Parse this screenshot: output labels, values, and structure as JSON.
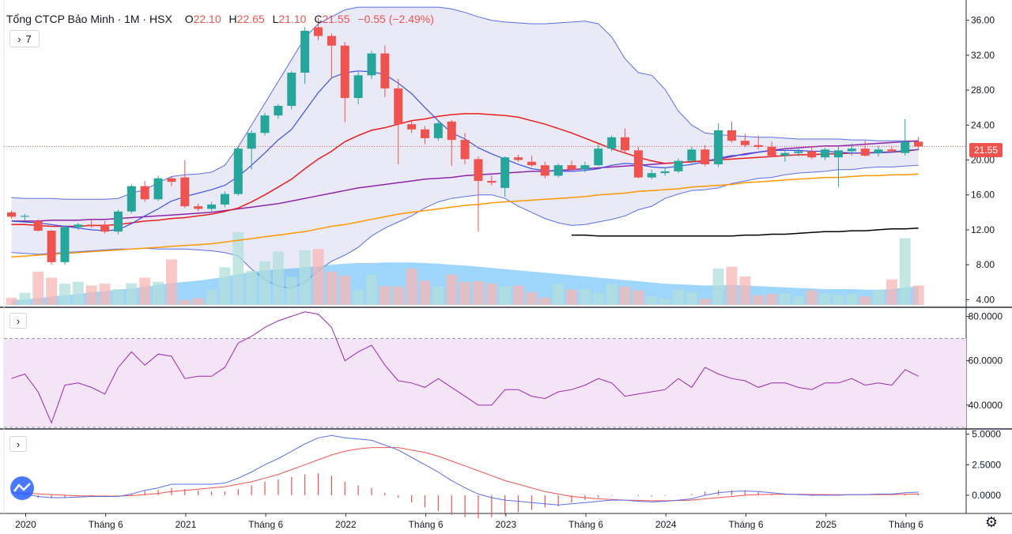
{
  "header": {
    "symbol": "Tổng CTCP Bảo Minh · 1M · HSX",
    "o_label": "O",
    "o_value": "22.10",
    "h_label": "H",
    "h_value": "22.65",
    "l_label": "L",
    "l_value": "21.10",
    "c_label": "C",
    "c_value": "21.55",
    "change": "−0.55 (−2.49%)"
  },
  "controls": {
    "collapse_main": "7",
    "collapse_rsi": "",
    "collapse_macd": ""
  },
  "price_label": "21.55",
  "colors": {
    "up": "#26a69a",
    "down": "#ef5350",
    "vol_up": "#b2dfdb",
    "vol_down": "#f7b7b5",
    "bb_fill": "#e1e3f3",
    "bb_line": "#5b6ee8",
    "ma_red": "#e91e1e",
    "ma_purple": "#8e24aa",
    "ma_orange": "#ff9800",
    "ma_blue": "#3f51e6",
    "black": "#000000",
    "rsi_band": "#f3e5f5",
    "rsi_line": "#9c27b0"
  },
  "chart_data": {
    "type": "candlestick",
    "price_axis": {
      "ticks": [
        "36.00",
        "32.00",
        "28.00",
        "24.00",
        "20.00",
        "16.00",
        "12.00",
        "8.00",
        "4.00"
      ],
      "ylim": [
        3.4,
        37.6
      ]
    },
    "rsi_axis": {
      "ticks": [
        "80.0000",
        "60.0000",
        "40.0000"
      ],
      "ylim": [
        30,
        83
      ],
      "band": [
        30,
        70
      ]
    },
    "macd_axis": {
      "ticks": [
        "5.0000",
        "2.5000",
        "0.0000"
      ],
      "ylim": [
        -1.3,
        5.3
      ]
    },
    "x_labels": [
      {
        "i": 0,
        "text": "2020"
      },
      {
        "i": 6,
        "text": "Tháng 6"
      },
      {
        "i": 12,
        "text": "2021"
      },
      {
        "i": 18,
        "text": "Tháng 6"
      },
      {
        "i": 24,
        "text": "2022"
      },
      {
        "i": 30,
        "text": "Tháng 6"
      },
      {
        "i": 36,
        "text": "2023"
      },
      {
        "i": 42,
        "text": "Tháng 6"
      },
      {
        "i": 48,
        "text": "2024"
      },
      {
        "i": 54,
        "text": "Tháng 6"
      },
      {
        "i": 60,
        "text": "2025"
      },
      {
        "i": 66,
        "text": "Tháng 6"
      }
    ],
    "candles": [
      [
        14.0,
        14.2,
        13.3,
        13.5
      ],
      [
        13.5,
        13.8,
        13.0,
        13.6
      ],
      [
        13.0,
        13.2,
        11.8,
        11.9
      ],
      [
        11.9,
        12.0,
        8.0,
        8.3
      ],
      [
        8.3,
        12.5,
        8.0,
        12.3
      ],
      [
        12.3,
        12.8,
        12.0,
        12.6
      ],
      [
        12.6,
        13.2,
        12.2,
        12.4
      ],
      [
        12.6,
        13.0,
        11.6,
        11.8
      ],
      [
        11.8,
        14.3,
        11.5,
        14.1
      ],
      [
        14.1,
        17.2,
        13.9,
        17.0
      ],
      [
        17.0,
        17.6,
        15.2,
        15.5
      ],
      [
        15.5,
        18.2,
        15.3,
        17.9
      ],
      [
        17.9,
        18.1,
        17.0,
        17.5
      ],
      [
        18.0,
        20.0,
        14.5,
        14.7
      ],
      [
        14.7,
        15.0,
        14.1,
        14.4
      ],
      [
        14.4,
        15.2,
        14.1,
        14.9
      ],
      [
        14.9,
        16.4,
        14.6,
        16.1
      ],
      [
        16.1,
        21.5,
        15.9,
        21.3
      ],
      [
        21.3,
        23.4,
        18.9,
        23.1
      ],
      [
        23.1,
        25.4,
        22.8,
        25.1
      ],
      [
        25.1,
        26.4,
        24.7,
        26.2
      ],
      [
        26.2,
        30.2,
        25.8,
        30.0
      ],
      [
        30.0,
        35.2,
        28.7,
        34.8
      ],
      [
        35.2,
        36.3,
        33.7,
        34.2
      ],
      [
        34.2,
        34.5,
        29.3,
        33.1
      ],
      [
        33.1,
        33.5,
        24.3,
        27.1
      ],
      [
        27.1,
        30.2,
        26.4,
        29.7
      ],
      [
        29.7,
        32.5,
        29.3,
        32.2
      ],
      [
        32.2,
        33.1,
        27.2,
        28.2
      ],
      [
        28.2,
        29.3,
        19.5,
        24.1
      ],
      [
        24.1,
        24.4,
        23.1,
        23.5
      ],
      [
        23.5,
        23.9,
        21.8,
        22.5
      ],
      [
        22.5,
        24.5,
        22.2,
        24.2
      ],
      [
        24.4,
        24.6,
        19.3,
        22.3
      ],
      [
        22.3,
        23.1,
        19.5,
        20.1
      ],
      [
        20.1,
        20.4,
        11.8,
        17.6
      ],
      [
        17.6,
        18.2,
        17.1,
        17.4
      ],
      [
        16.8,
        20.4,
        15.8,
        20.3
      ],
      [
        20.3,
        20.6,
        19.8,
        20.0
      ],
      [
        19.8,
        20.5,
        19.2,
        19.4
      ],
      [
        19.4,
        19.8,
        17.9,
        18.2
      ],
      [
        18.2,
        19.6,
        18.0,
        19.4
      ],
      [
        19.4,
        19.9,
        18.8,
        18.9
      ],
      [
        18.9,
        19.8,
        18.6,
        19.4
      ],
      [
        19.4,
        21.8,
        19.3,
        21.3
      ],
      [
        21.3,
        22.8,
        21.0,
        22.6
      ],
      [
        22.6,
        23.6,
        20.8,
        21.1
      ],
      [
        21.1,
        21.5,
        17.9,
        18.0
      ],
      [
        18.0,
        18.9,
        17.8,
        18.5
      ],
      [
        18.5,
        19.1,
        18.2,
        18.7
      ],
      [
        18.7,
        20.2,
        18.5,
        19.9
      ],
      [
        19.9,
        21.5,
        19.6,
        21.2
      ],
      [
        21.2,
        21.7,
        19.3,
        19.5
      ],
      [
        19.5,
        24.2,
        19.2,
        23.4
      ],
      [
        23.4,
        24.4,
        22.0,
        22.2
      ],
      [
        22.2,
        23.0,
        21.5,
        21.7
      ],
      [
        21.7,
        22.8,
        21.2,
        21.5
      ],
      [
        21.5,
        22.1,
        20.3,
        20.5
      ],
      [
        20.5,
        21.1,
        19.8,
        20.8
      ],
      [
        20.8,
        21.4,
        20.4,
        21.0
      ],
      [
        21.0,
        21.5,
        20.1,
        20.3
      ],
      [
        20.3,
        21.4,
        20.0,
        21.2
      ],
      [
        20.3,
        21.5,
        16.9,
        21.1
      ],
      [
        21.0,
        21.9,
        20.5,
        21.3
      ],
      [
        21.3,
        22.2,
        20.4,
        20.5
      ],
      [
        20.8,
        21.6,
        20.4,
        21.2
      ],
      [
        21.2,
        21.5,
        20.8,
        21.0
      ],
      [
        20.8,
        24.7,
        20.5,
        22.1
      ],
      [
        22.1,
        22.65,
        21.1,
        21.55
      ]
    ],
    "volume": [
      1.2,
      2.0,
      5.5,
      4.5,
      3.5,
      3.8,
      3.2,
      3.5,
      2.6,
      3.6,
      4.5,
      3.8,
      7.5,
      0.8,
      1.1,
      2.5,
      6.2,
      12.0,
      5.6,
      7.2,
      8.8,
      4.6,
      9.0,
      9.2,
      5.5,
      4.8,
      2.5,
      5.0,
      3.1,
      3.0,
      6.0,
      4.0,
      3.0,
      5.0,
      3.8,
      3.9,
      3.5,
      3.1,
      3.2,
      2.1,
      1.2,
      3.5,
      2.5,
      2.6,
      2.0,
      3.4,
      3.0,
      2.4,
      1.4,
      1.0,
      2.5,
      2.1,
      1.0,
      6.0,
      6.3,
      4.7,
      1.6,
      1.8,
      1.9,
      1.4,
      2.4,
      1.9,
      1.7,
      1.8,
      1.4,
      2.4,
      4.2,
      11.0,
      3.2
    ],
    "ma_volume": [
      0.8,
      0.9,
      1.1,
      1.4,
      1.6,
      1.8,
      2.1,
      2.3,
      2.5,
      2.7,
      3.0,
      3.3,
      3.6,
      3.8,
      4.0,
      4.3,
      4.6,
      5.1,
      5.4,
      5.7,
      5.9,
      6.0,
      6.2,
      6.4,
      6.6,
      6.8,
      6.9,
      6.9,
      7.0,
      7.0,
      7.0,
      6.9,
      6.8,
      6.6,
      6.5,
      6.3,
      6.1,
      5.9,
      5.7,
      5.5,
      5.3,
      5.1,
      4.9,
      4.7,
      4.5,
      4.3,
      4.1,
      3.9,
      3.7,
      3.5,
      3.4,
      3.3,
      3.2,
      3.2,
      3.3,
      3.2,
      3.1,
      3.0,
      2.9,
      2.8,
      2.7,
      2.6,
      2.6,
      2.6,
      2.5,
      2.5,
      2.6,
      2.9,
      3.0
    ],
    "bb_upper": [
      15.7,
      15.6,
      15.6,
      15.6,
      15.5,
      15.5,
      15.5,
      15.5,
      15.6,
      16.2,
      16.6,
      17.4,
      18.1,
      18.3,
      18.4,
      18.6,
      19.4,
      21.5,
      24.0,
      26.5,
      29.0,
      31.5,
      34.0,
      35.6,
      36.4,
      37.2,
      37.5,
      37.5,
      37.5,
      37.5,
      37.5,
      37.5,
      37.5,
      37.3,
      36.9,
      36.4,
      36.0,
      35.8,
      35.7,
      35.6,
      35.6,
      35.7,
      35.8,
      35.9,
      35.6,
      34.1,
      31.6,
      30.0,
      29.7,
      28.1,
      25.6,
      24.0,
      23.1,
      22.9,
      22.8,
      22.7,
      22.6,
      22.6,
      22.5,
      22.4,
      22.4,
      22.4,
      22.4,
      22.3,
      22.3,
      22.2,
      22.2,
      22.2,
      22.1
    ],
    "bb_lower": [
      9.4,
      9.3,
      9.2,
      9.3,
      9.4,
      9.5,
      9.6,
      9.7,
      9.8,
      9.8,
      9.9,
      9.8,
      9.8,
      9.8,
      9.7,
      9.6,
      9.4,
      9.0,
      7.5,
      6.3,
      5.5,
      5.3,
      6.0,
      7.3,
      8.4,
      9.1,
      10.0,
      11.3,
      12.2,
      12.9,
      13.6,
      14.5,
      15.2,
      15.6,
      15.8,
      16.0,
      16.0,
      15.6,
      14.7,
      14.0,
      13.3,
      12.8,
      12.5,
      12.6,
      12.9,
      13.2,
      13.6,
      14.3,
      14.7,
      15.6,
      16.1,
      16.5,
      16.6,
      16.8,
      17.3,
      17.6,
      17.9,
      18.0,
      18.3,
      18.5,
      18.6,
      18.7,
      18.9,
      18.9,
      19.1,
      19.2,
      19.2,
      19.3,
      19.4
    ],
    "ma_fast": [
      13.0,
      12.9,
      12.8,
      12.6,
      12.4,
      12.2,
      12.0,
      11.9,
      12.0,
      12.7,
      13.6,
      14.4,
      15.3,
      15.8,
      16.2,
      16.6,
      17.1,
      18.1,
      19.4,
      20.8,
      22.3,
      23.5,
      25.6,
      27.7,
      29.4,
      30.0,
      30.2,
      30.1,
      29.8,
      28.8,
      27.6,
      26.0,
      24.5,
      23.1,
      22.4,
      21.4,
      20.7,
      20.1,
      19.5,
      19.0,
      18.8,
      18.7,
      18.7,
      18.8,
      19.0,
      19.4,
      19.6,
      19.5,
      19.2,
      19.1,
      19.3,
      19.5,
      19.8,
      20.2,
      20.5,
      20.6,
      20.9,
      21.1,
      21.1,
      21.1,
      21.0,
      21.0,
      20.9,
      20.8,
      20.8,
      20.8,
      20.9,
      21.1,
      21.2
    ],
    "ma_mid": [
      12.6,
      12.6,
      12.5,
      12.4,
      12.4,
      12.4,
      12.5,
      12.5,
      12.6,
      12.8,
      13.0,
      13.1,
      13.3,
      13.4,
      13.6,
      13.8,
      14.1,
      14.5,
      15.2,
      16.0,
      16.9,
      17.8,
      19.0,
      20.1,
      21.0,
      22.1,
      22.8,
      23.4,
      23.7,
      24.1,
      24.5,
      24.7,
      25.0,
      25.2,
      25.3,
      25.3,
      25.2,
      25.1,
      24.9,
      24.5,
      24.1,
      23.6,
      23.1,
      22.5,
      21.9,
      21.3,
      20.8,
      20.3,
      19.9,
      19.6,
      19.7,
      19.8,
      19.9,
      20.0,
      20.1,
      20.2,
      20.3,
      20.4,
      20.5,
      20.6,
      20.6,
      20.7,
      20.7,
      20.8,
      20.8,
      20.9,
      20.9,
      21.0,
      21.2
    ],
    "ma_purple": [
      13.0,
      13.0,
      13.0,
      13.1,
      13.1,
      13.1,
      13.2,
      13.2,
      13.3,
      13.4,
      13.5,
      13.6,
      13.7,
      13.8,
      13.9,
      14.0,
      14.2,
      14.4,
      14.6,
      14.8,
      15.0,
      15.3,
      15.6,
      15.9,
      16.2,
      16.5,
      16.8,
      17.0,
      17.2,
      17.4,
      17.6,
      17.8,
      17.9,
      18.0,
      18.2,
      18.3,
      18.4,
      18.5,
      18.6,
      18.7,
      18.7,
      18.8,
      18.9,
      19.0,
      19.1,
      19.2,
      19.3,
      19.4,
      19.5,
      19.6,
      19.7,
      19.8,
      19.9,
      20.1,
      20.4,
      20.7,
      20.9,
      21.1,
      21.3,
      21.4,
      21.5,
      21.6,
      21.6,
      21.7,
      21.8,
      21.9,
      22.0,
      22.1,
      22.2
    ],
    "ma_orange": [
      8.9,
      9.0,
      9.1,
      9.2,
      9.3,
      9.4,
      9.5,
      9.6,
      9.7,
      9.8,
      9.9,
      10.0,
      10.1,
      10.2,
      10.3,
      10.4,
      10.6,
      10.8,
      11.0,
      11.2,
      11.4,
      11.6,
      11.8,
      12.1,
      12.4,
      12.6,
      12.9,
      13.2,
      13.5,
      13.8,
      14.0,
      14.2,
      14.4,
      14.6,
      14.8,
      14.9,
      15.1,
      15.2,
      15.3,
      15.4,
      15.5,
      15.6,
      15.7,
      15.8,
      16.0,
      16.1,
      16.2,
      16.4,
      16.5,
      16.6,
      16.7,
      16.9,
      17.0,
      17.1,
      17.2,
      17.4,
      17.5,
      17.6,
      17.7,
      17.8,
      17.9,
      18.0,
      18.0,
      18.1,
      18.2,
      18.2,
      18.3,
      18.3,
      18.4
    ],
    "black_line": {
      "start": 42,
      "values": [
        11.4,
        11.4,
        11.3,
        11.3,
        11.3,
        11.3,
        11.3,
        11.3,
        11.3,
        11.3,
        11.3,
        11.3,
        11.3,
        11.4,
        11.4,
        11.5,
        11.5,
        11.6,
        11.7,
        11.8,
        11.8,
        11.9,
        11.9,
        12.0,
        12.1,
        12.1,
        12.2
      ]
    },
    "rsi": [
      52,
      54,
      46,
      32,
      49,
      50,
      48,
      45,
      57,
      64,
      58,
      63,
      62,
      52,
      53,
      53,
      57,
      68,
      71,
      75,
      78,
      80,
      82,
      81,
      75,
      60,
      64,
      67,
      58,
      51,
      50,
      48,
      52,
      48,
      44,
      40,
      40,
      47,
      47,
      44,
      43,
      46,
      47,
      49,
      52,
      50,
      44,
      45,
      46,
      47,
      52,
      48,
      57,
      54,
      52,
      51,
      48,
      50,
      50,
      48,
      47,
      50,
      50,
      52,
      49,
      50,
      49,
      56,
      53
    ],
    "macd": [
      0.2,
      0.1,
      -0.1,
      -0.2,
      -0.2,
      -0.15,
      -0.1,
      -0.1,
      -0.1,
      0.1,
      0.4,
      0.6,
      0.9,
      0.9,
      0.9,
      0.9,
      1.0,
      1.4,
      1.9,
      2.5,
      3.0,
      3.6,
      4.2,
      4.7,
      4.9,
      4.7,
      4.6,
      4.5,
      4.1,
      3.7,
      3.1,
      2.5,
      1.9,
      1.2,
      0.6,
      0.1,
      -0.2,
      -0.4,
      -0.5,
      -0.6,
      -0.7,
      -0.8,
      -0.7,
      -0.6,
      -0.5,
      -0.4,
      -0.4,
      -0.5,
      -0.55,
      -0.5,
      -0.4,
      -0.3,
      0.0,
      0.2,
      0.3,
      0.35,
      0.3,
      0.2,
      0.1,
      0.05,
      0.0,
      0.0,
      0.0,
      0.05,
      0.05,
      0.1,
      0.1,
      0.2,
      0.25
    ],
    "macd_signal": [
      0.2,
      0.18,
      0.12,
      0.05,
      0.0,
      -0.05,
      -0.06,
      -0.07,
      -0.07,
      -0.03,
      0.05,
      0.15,
      0.3,
      0.4,
      0.5,
      0.6,
      0.7,
      0.9,
      1.1,
      1.4,
      1.7,
      2.1,
      2.5,
      2.9,
      3.3,
      3.6,
      3.8,
      3.9,
      3.9,
      3.9,
      3.7,
      3.5,
      3.2,
      2.8,
      2.4,
      2.0,
      1.6,
      1.2,
      0.9,
      0.6,
      0.3,
      0.1,
      -0.1,
      -0.2,
      -0.3,
      -0.35,
      -0.4,
      -0.42,
      -0.45,
      -0.45,
      -0.43,
      -0.4,
      -0.3,
      -0.2,
      -0.1,
      0.0,
      0.05,
      0.08,
      0.08,
      0.07,
      0.06,
      0.05,
      0.04,
      0.04,
      0.04,
      0.05,
      0.06,
      0.08,
      0.1
    ]
  }
}
